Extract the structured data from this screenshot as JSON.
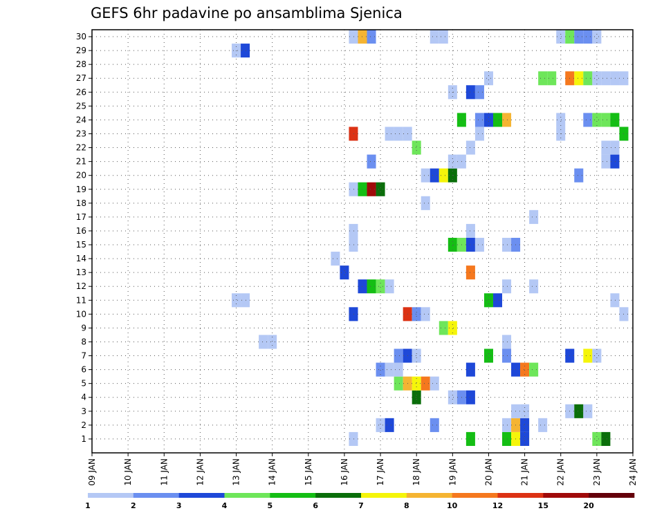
{
  "chart_data": {
    "type": "heatmap",
    "title": "GEFS 6hr padavine po ansamblima Sjenica",
    "xlabel": "",
    "ylabel": "",
    "x_ticks": [
      "09 JAN",
      "10 JAN",
      "11 JAN",
      "12 JAN",
      "13 JAN",
      "14 JAN",
      "15 JAN",
      "16 JAN",
      "17 JAN",
      "18 JAN",
      "19 JAN",
      "20 JAN",
      "21 JAN",
      "22 JAN",
      "23 JAN",
      "24 JAN"
    ],
    "x_range_days": [
      9,
      24
    ],
    "y_ticks": [
      "1",
      "2",
      "3",
      "4",
      "5",
      "6",
      "7",
      "8",
      "9",
      "10",
      "11",
      "12",
      "13",
      "14",
      "15",
      "16",
      "17",
      "18",
      "19",
      "20",
      "21",
      "22",
      "23",
      "24",
      "25",
      "26",
      "27",
      "28",
      "29",
      "30"
    ],
    "grid": true,
    "colorbar": {
      "labels": [
        "1",
        "2",
        "3",
        "4",
        "5",
        "6",
        "7",
        "8",
        "10",
        "12",
        "15",
        "20"
      ],
      "colors": [
        "#b4c8f5",
        "#6b8ff0",
        "#1e48d8",
        "#6ee65a",
        "#14be14",
        "#0a6e0a",
        "#f5f50a",
        "#f5b432",
        "#f5781e",
        "#dc3214",
        "#a00a0a",
        "#64000a"
      ]
    },
    "cells": [
      [
        16.25,
        1,
        0
      ],
      [
        19.5,
        1,
        4
      ],
      [
        20.5,
        1,
        4
      ],
      [
        20.75,
        1,
        6
      ],
      [
        21.0,
        1,
        2
      ],
      [
        23.0,
        1,
        3
      ],
      [
        23.25,
        1,
        5
      ],
      [
        17.0,
        2,
        0
      ],
      [
        17.25,
        2,
        2
      ],
      [
        18.5,
        2,
        1
      ],
      [
        20.5,
        2,
        0
      ],
      [
        20.75,
        2,
        7
      ],
      [
        21.0,
        2,
        2
      ],
      [
        21.5,
        2,
        0
      ],
      [
        20.75,
        3,
        0
      ],
      [
        21.0,
        3,
        0
      ],
      [
        22.25,
        3,
        0
      ],
      [
        22.5,
        3,
        5
      ],
      [
        22.75,
        3,
        0
      ],
      [
        18.0,
        4,
        5
      ],
      [
        19.0,
        4,
        0
      ],
      [
        19.25,
        4,
        1
      ],
      [
        19.5,
        4,
        2
      ],
      [
        17.5,
        5,
        3
      ],
      [
        17.75,
        5,
        7
      ],
      [
        18.0,
        5,
        6
      ],
      [
        18.25,
        5,
        8
      ],
      [
        18.5,
        5,
        0
      ],
      [
        17.0,
        6,
        1
      ],
      [
        17.25,
        6,
        0
      ],
      [
        17.5,
        6,
        0
      ],
      [
        19.5,
        6,
        2
      ],
      [
        20.75,
        6,
        2
      ],
      [
        21.0,
        6,
        8
      ],
      [
        21.25,
        6,
        3
      ],
      [
        17.5,
        7,
        1
      ],
      [
        17.75,
        7,
        2
      ],
      [
        18.0,
        7,
        0
      ],
      [
        20.0,
        7,
        4
      ],
      [
        20.5,
        7,
        1
      ],
      [
        22.25,
        7,
        2
      ],
      [
        22.75,
        7,
        6
      ],
      [
        23.0,
        7,
        0
      ],
      [
        13.75,
        8,
        0
      ],
      [
        14.0,
        8,
        0
      ],
      [
        20.5,
        8,
        0
      ],
      [
        18.75,
        9,
        3
      ],
      [
        19.0,
        9,
        6
      ],
      [
        16.25,
        10,
        2
      ],
      [
        17.75,
        10,
        9
      ],
      [
        18.0,
        10,
        1
      ],
      [
        18.25,
        10,
        0
      ],
      [
        23.75,
        10,
        0
      ],
      [
        13.0,
        11,
        0
      ],
      [
        13.25,
        11,
        0
      ],
      [
        20.0,
        11,
        4
      ],
      [
        20.25,
        11,
        2
      ],
      [
        23.5,
        11,
        0
      ],
      [
        16.5,
        12,
        2
      ],
      [
        16.75,
        12,
        4
      ],
      [
        17.0,
        12,
        3
      ],
      [
        17.25,
        12,
        0
      ],
      [
        20.5,
        12,
        0
      ],
      [
        21.25,
        12,
        0
      ],
      [
        16.0,
        13,
        2
      ],
      [
        19.5,
        13,
        8
      ],
      [
        15.75,
        14,
        0
      ],
      [
        16.25,
        15,
        0
      ],
      [
        19.0,
        15,
        4
      ],
      [
        19.25,
        15,
        3
      ],
      [
        19.5,
        15,
        2
      ],
      [
        19.75,
        15,
        0
      ],
      [
        20.5,
        15,
        0
      ],
      [
        20.75,
        15,
        1
      ],
      [
        16.25,
        16,
        0
      ],
      [
        19.5,
        16,
        0
      ],
      [
        21.25,
        17,
        0
      ],
      [
        18.25,
        18,
        0
      ],
      [
        16.25,
        19,
        0
      ],
      [
        16.5,
        19,
        4
      ],
      [
        16.75,
        19,
        10
      ],
      [
        17.0,
        19,
        5
      ],
      [
        18.25,
        20,
        0
      ],
      [
        18.5,
        20,
        2
      ],
      [
        18.75,
        20,
        6
      ],
      [
        19.0,
        20,
        5
      ],
      [
        22.5,
        20,
        1
      ],
      [
        16.75,
        21,
        1
      ],
      [
        19.0,
        21,
        0
      ],
      [
        19.25,
        21,
        0
      ],
      [
        23.25,
        21,
        0
      ],
      [
        23.5,
        21,
        2
      ],
      [
        18.0,
        22,
        3
      ],
      [
        19.5,
        22,
        0
      ],
      [
        23.25,
        22,
        0
      ],
      [
        23.5,
        22,
        0
      ],
      [
        16.25,
        23,
        9
      ],
      [
        17.25,
        23,
        0
      ],
      [
        17.5,
        23,
        0
      ],
      [
        17.75,
        23,
        0
      ],
      [
        19.75,
        23,
        0
      ],
      [
        22.0,
        23,
        0
      ],
      [
        23.75,
        23,
        4
      ],
      [
        19.25,
        24,
        4
      ],
      [
        19.75,
        24,
        1
      ],
      [
        20.0,
        24,
        2
      ],
      [
        20.25,
        24,
        4
      ],
      [
        20.5,
        24,
        7
      ],
      [
        22.0,
        24,
        0
      ],
      [
        22.75,
        24,
        1
      ],
      [
        23.0,
        24,
        3
      ],
      [
        23.25,
        24,
        3
      ],
      [
        23.5,
        24,
        4
      ],
      [
        19.0,
        26,
        0
      ],
      [
        19.5,
        26,
        2
      ],
      [
        19.75,
        26,
        1
      ],
      [
        20.0,
        27,
        0
      ],
      [
        21.5,
        27,
        3
      ],
      [
        21.75,
        27,
        3
      ],
      [
        22.25,
        27,
        8
      ],
      [
        22.5,
        27,
        6
      ],
      [
        22.75,
        27,
        3
      ],
      [
        23.0,
        27,
        0
      ],
      [
        23.25,
        27,
        0
      ],
      [
        23.5,
        27,
        0
      ],
      [
        23.75,
        27,
        0
      ],
      [
        13.0,
        29,
        0
      ],
      [
        13.25,
        29,
        2
      ],
      [
        16.25,
        30,
        0
      ],
      [
        16.5,
        30,
        7
      ],
      [
        16.75,
        30,
        1
      ],
      [
        18.5,
        30,
        0
      ],
      [
        18.75,
        30,
        0
      ],
      [
        22.0,
        30,
        0
      ],
      [
        22.25,
        30,
        3
      ],
      [
        22.5,
        30,
        1
      ],
      [
        22.75,
        30,
        1
      ],
      [
        23.0,
        30,
        0
      ]
    ]
  }
}
